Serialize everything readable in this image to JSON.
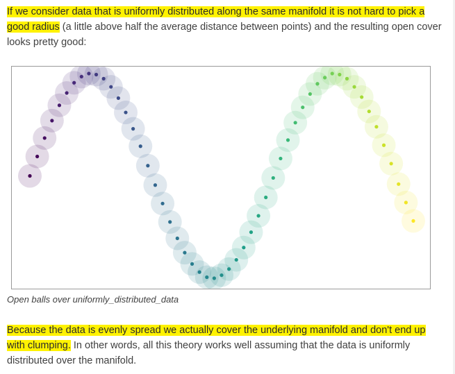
{
  "intro": {
    "highlighted": "If we consider data that is uniformly distributed along the same manifold it is not hard to pick a good radius",
    "rest": " (a little above half the average distance between points) and the resulting open cover looks pretty good:"
  },
  "figure": {
    "caption": "Open balls over uniformly_distributed_data",
    "ball_color_note": "viridis",
    "chart_data": {
      "type": "scatter",
      "title": "",
      "xlabel": "",
      "ylabel": "",
      "colormap": "viridis",
      "x": [
        0.0,
        0.19,
        0.38,
        0.57,
        0.76,
        0.95,
        1.14,
        1.33,
        1.52,
        1.71,
        1.9,
        2.09,
        2.28,
        2.47,
        2.66,
        2.85,
        3.04,
        3.23,
        3.42,
        3.61,
        3.8,
        3.99,
        4.18,
        4.37,
        4.56,
        4.75,
        4.94,
        5.13,
        5.32,
        5.51,
        5.7,
        5.89,
        6.08,
        6.27,
        6.46,
        6.65,
        6.84,
        7.03,
        7.22,
        7.41,
        7.6,
        7.79,
        7.98,
        8.17,
        8.36,
        8.55,
        8.74,
        8.93,
        9.12,
        9.31,
        9.5,
        9.69,
        9.88
      ],
      "y": [
        0.0,
        0.19,
        0.37,
        0.54,
        0.69,
        0.81,
        0.91,
        0.97,
        1.0,
        0.99,
        0.95,
        0.87,
        0.76,
        0.62,
        0.46,
        0.29,
        0.1,
        -0.09,
        -0.27,
        -0.45,
        -0.61,
        -0.75,
        -0.86,
        -0.94,
        -0.99,
        -1.0,
        -0.97,
        -0.91,
        -0.82,
        -0.7,
        -0.55,
        -0.39,
        -0.21,
        -0.02,
        0.17,
        0.35,
        0.52,
        0.67,
        0.8,
        0.9,
        0.96,
        1.0,
        0.99,
        0.95,
        0.87,
        0.77,
        0.63,
        0.48,
        0.3,
        0.12,
        -0.08,
        -0.26,
        -0.44
      ]
    }
  },
  "outro": {
    "highlighted": "Because the data is evenly spread we actually cover the underlying manifold and don't end up with clumping.",
    "rest": " In other words, all this theory works well assuming that the data is uniformly distributed over the manifold."
  }
}
